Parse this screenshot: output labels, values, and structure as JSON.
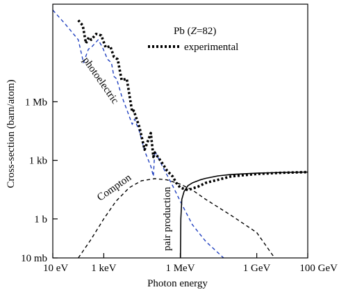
{
  "chart_data": {
    "type": "line",
    "title": "",
    "xlabel": "Photon energy",
    "ylabel": "Cross-section (barn/atom)",
    "x_scale": "log",
    "y_scale": "log",
    "x_unit": "eV",
    "y_unit": "barn",
    "xlim": [
      10,
      100000000000
    ],
    "ylim": [
      0.01,
      100000000000
    ],
    "x_ticks": [
      {
        "value": 10,
        "label": "10 eV"
      },
      {
        "value": 1000,
        "label": "1 keV"
      },
      {
        "value": 1000000,
        "label": "1 MeV"
      },
      {
        "value": 1000000000,
        "label": "1 GeV"
      },
      {
        "value": 100000000000,
        "label": "100 GeV"
      }
    ],
    "y_ticks": [
      {
        "value": 0.01,
        "label": "10 mb"
      },
      {
        "value": 1,
        "label": "1 b"
      },
      {
        "value": 1000,
        "label": "1 kb"
      },
      {
        "value": 1000000,
        "label": "1 Mb"
      }
    ],
    "grid": false,
    "legend": {
      "position": "top-right",
      "heading": "Pb (Z=82)",
      "heading_prefix": "Pb (",
      "heading_italic": "Z",
      "heading_suffix": "=82)",
      "entries": [
        {
          "name": "experimental",
          "style": "dotted",
          "color": "#000000"
        }
      ]
    },
    "series": [
      {
        "name": "photoelectric",
        "style": "dashed",
        "color": "#1f3fbf",
        "x": [
          10,
          30,
          100,
          160,
          250,
          320,
          600,
          900,
          1400,
          2000,
          2500,
          3200,
          5000,
          8000,
          13000,
          15000,
          16000,
          25000,
          40000,
          70000,
          88000,
          100000,
          200000,
          500000,
          1000000,
          3000000,
          10000000,
          50000000
        ],
        "y": [
          50000000000.0,
          10000000000.0,
          1500000000.0,
          100000000.0,
          500000000.0,
          600000000.0,
          1500000000.0,
          600000000.0,
          150000000.0,
          100000000.0,
          20000000.0,
          15000000.0,
          2000000.0,
          400000.0,
          70000.0,
          100000.0,
          130000.0,
          30000.0,
          3000.0,
          500,
          150,
          3000.0,
          500,
          50,
          8,
          0.5,
          0.07,
          0.01
        ]
      },
      {
        "name": "experimental",
        "style": "dotted",
        "color": "#000000",
        "x": [
          100,
          150,
          200,
          260,
          320,
          500,
          800,
          1200,
          1800,
          2500,
          3500,
          5000,
          8000,
          13000,
          15000,
          25000,
          40000,
          70000,
          88000,
          100000,
          200000,
          300000,
          500000,
          700000,
          1000000,
          2000000,
          5000000,
          10000000,
          100000000,
          1000000000,
          10000000000,
          100000000000
        ],
        "y": [
          15000000000.0,
          8000000000.0,
          1000000000.0,
          2000000000.0,
          1500000000.0,
          3000000000.0,
          2500000000.0,
          600000000.0,
          700000000.0,
          200000000.0,
          150000000.0,
          13000000.0,
          15000000.0,
          300000.0,
          350000.0,
          50000.0,
          3500.0,
          25000.0,
          1500.0,
          2500.0,
          700,
          300,
          150,
          70,
          40,
          30,
          45,
          70,
          150,
          200,
          230,
          250
        ]
      },
      {
        "name": "Compton",
        "style": "dashed",
        "color": "#000000",
        "x": [
          100,
          300,
          1000,
          3000,
          10000,
          30000,
          100000,
          300000,
          1000000,
          3000000,
          10000000,
          100000000,
          1000000000,
          5000000000
        ],
        "y": [
          0.01,
          0.08,
          1,
          8,
          40,
          90,
          115,
          100,
          60,
          30,
          10,
          1.5,
          0.2,
          0.01
        ]
      },
      {
        "name": "pair production",
        "style": "solid",
        "color": "#000000",
        "x": [
          1020000,
          1050000,
          1150000,
          1400000,
          2000000,
          3000000,
          6000000,
          10000000,
          30000000,
          100000000,
          1000000000,
          10000000000,
          100000000000
        ],
        "y": [
          0.01,
          1,
          10,
          25,
          50,
          70,
          100,
          120,
          160,
          190,
          220,
          240,
          250
        ]
      }
    ],
    "annotations": [
      {
        "text": "photoelectric",
        "x": 600,
        "y": 10000000,
        "rotation_deg": 55
      },
      {
        "text": "Compton",
        "x": 3000,
        "y": 30,
        "rotation_deg": -35
      },
      {
        "text": "pair production",
        "x": 400000,
        "y": 1,
        "rotation_deg": -90
      }
    ]
  }
}
